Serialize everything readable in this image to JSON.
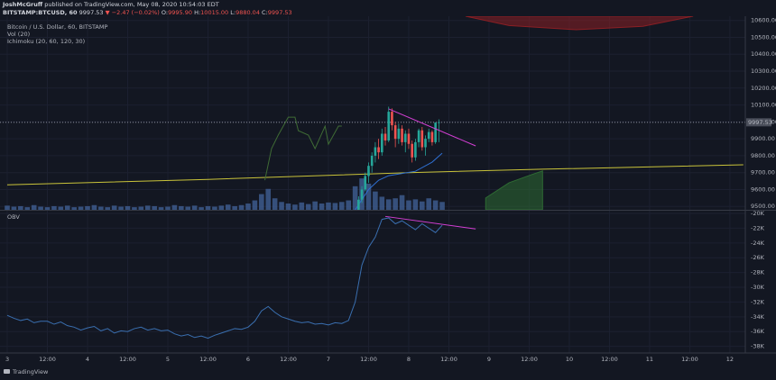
{
  "header": {
    "author": "JoshMcGruff",
    "published": "published on TradingView.com, May 08, 2020 10:54:03 EDT",
    "symbol": "BITSTAMP:BTCUSD, 60",
    "last": "9997.53",
    "change": "▼ −2.47 (−0.02%)",
    "ohlc": [
      {
        "label": "O:",
        "value": "9995.90"
      },
      {
        "label": "H:",
        "value": "10015.00"
      },
      {
        "label": "L:",
        "value": "9880.04"
      },
      {
        "label": "C:",
        "value": "9997.53"
      }
    ]
  },
  "footer": {
    "brand": "TradingView"
  },
  "chart_data": [
    {
      "type": "candlestick",
      "legend": [
        "Bitcoin / U.S. Dollar, 60, BITSTAMP",
        "Vol (20)",
        "Ichimoku (20, 60, 120, 30)"
      ],
      "xlim": [
        -2.16,
        220.6
      ],
      "ylim": [
        9480,
        10625
      ],
      "grid": true,
      "yticks": [
        {
          "value": 10600,
          "label": "10600.00"
        },
        {
          "value": 10500,
          "label": "10500.00"
        },
        {
          "value": 10400,
          "label": "10400.00"
        },
        {
          "value": 10300,
          "label": "10300.00"
        },
        {
          "value": 10200,
          "label": "10200.00"
        },
        {
          "value": 10100,
          "label": "10100.00"
        },
        {
          "value": 10000,
          "label": "10000.00"
        },
        {
          "value": 9900,
          "label": "9900.00"
        },
        {
          "value": 9800,
          "label": "9800.00"
        },
        {
          "value": 9700,
          "label": "9700.00"
        },
        {
          "value": 9600,
          "label": "9600.00"
        },
        {
          "value": 9500,
          "label": "9500.00"
        }
      ],
      "last_price": 9997.53,
      "candles": {
        "color_up": "#26a69a",
        "color_down": "#ef5350",
        "x": [
          105,
          106,
          107,
          108,
          109,
          110,
          111,
          112,
          113,
          114,
          115,
          116,
          117,
          118,
          119,
          120,
          121,
          122,
          123,
          124,
          125,
          126,
          127,
          128,
          129
        ],
        "open": [
          9480,
          9540,
          9600,
          9680,
          9740,
          9800,
          9850,
          9820,
          9930,
          9890,
          10060,
          9980,
          9900,
          9960,
          9880,
          9930,
          9870,
          9790,
          9880,
          9950,
          9850,
          9900,
          9940,
          9880,
          9995.9
        ],
        "high": [
          9560,
          9620,
          9700,
          9760,
          9820,
          9880,
          9900,
          9960,
          9970,
          10090,
          10080,
          10000,
          9990,
          9980,
          9950,
          9960,
          9890,
          9900,
          9960,
          9970,
          9920,
          9960,
          9950,
          9996,
          10015
        ],
        "low": [
          9470,
          9520,
          9590,
          9640,
          9700,
          9760,
          9780,
          9800,
          9860,
          9880,
          9950,
          9850,
          9870,
          9860,
          9820,
          9840,
          9760,
          9770,
          9850,
          9830,
          9800,
          9880,
          9860,
          9870,
          9880.04
        ],
        "close": [
          9540,
          9600,
          9680,
          9740,
          9800,
          9850,
          9820,
          9930,
          9890,
          10060,
          9980,
          9900,
          9960,
          9880,
          9930,
          9870,
          9790,
          9880,
          9950,
          9850,
          9900,
          9940,
          9880,
          9995.9,
          9997.53
        ]
      },
      "volume": {
        "color": "#3d5a8c",
        "ylim": [
          0,
          370
        ],
        "x": [
          0,
          2,
          4,
          6,
          8,
          10,
          12,
          14,
          16,
          18,
          20,
          22,
          24,
          26,
          28,
          30,
          32,
          34,
          36,
          38,
          40,
          42,
          44,
          46,
          48,
          50,
          52,
          54,
          56,
          58,
          60,
          62,
          64,
          66,
          68,
          70,
          72,
          74,
          76,
          78,
          80,
          82,
          84,
          86,
          88,
          90,
          92,
          94,
          96,
          98,
          100,
          102,
          104,
          106,
          108,
          110,
          112,
          114,
          116,
          118,
          120,
          122,
          124,
          126,
          128,
          130
        ],
        "values": [
          8,
          6,
          7,
          5,
          9,
          6,
          5,
          7,
          6,
          8,
          5,
          6,
          7,
          9,
          6,
          5,
          8,
          6,
          7,
          5,
          6,
          8,
          7,
          5,
          6,
          9,
          7,
          6,
          8,
          5,
          7,
          6,
          8,
          10,
          7,
          9,
          12,
          18,
          30,
          40,
          22,
          15,
          12,
          10,
          14,
          11,
          16,
          12,
          14,
          13,
          15,
          18,
          45,
          60,
          50,
          35,
          25,
          20,
          22,
          28,
          18,
          20,
          16,
          22,
          18,
          15
        ]
      },
      "lines": [
        {
          "color": "#c9c33a",
          "x": [
            0,
            60,
            120,
            160,
            220
          ],
          "values": [
            9628,
            9660,
            9700,
            9720,
            9746
          ]
        },
        {
          "color": "#3f6b35",
          "x": [
            77,
            79,
            81,
            84,
            86,
            87,
            90,
            92,
            95,
            96,
            99,
            100
          ],
          "values": [
            9655,
            9842,
            9922,
            10028,
            10028,
            9948,
            9922,
            9842,
            9975,
            9868,
            9975,
            9975
          ]
        },
        {
          "color": "#2f6fd1",
          "x": [
            104,
            108,
            111,
            114,
            122,
            127,
            130
          ],
          "values": [
            9480,
            9600,
            9655,
            9682,
            9708,
            9762,
            9815
          ]
        }
      ],
      "clouds": [
        {
          "color": "#2e6b33",
          "fill_to": "bottom",
          "x": [
            143,
            150,
            157,
            160
          ],
          "values": [
            9550,
            9640,
            9690,
            9710
          ]
        },
        {
          "color": "#8b1f24",
          "fill_to": "top",
          "x": [
            137,
            150,
            170,
            190,
            205
          ],
          "values": [
            10625,
            10570,
            10545,
            10565,
            10625
          ]
        }
      ],
      "trendlines": [
        {
          "color": "#d43fd4",
          "x": [
            114,
            140
          ],
          "values": [
            10077,
            9858
          ]
        }
      ]
    },
    {
      "type": "line",
      "title": "OBV",
      "xlim": [
        -2.16,
        220.6
      ],
      "ylim": [
        -38.9,
        -19.63
      ],
      "grid": true,
      "yticks": [
        {
          "value": -20,
          "label": "-20K"
        },
        {
          "value": -22,
          "label": "-22K"
        },
        {
          "value": -24,
          "label": "-24K"
        },
        {
          "value": -26,
          "label": "-26K"
        },
        {
          "value": -28,
          "label": "-28K"
        },
        {
          "value": -30,
          "label": "-30K"
        },
        {
          "value": -32,
          "label": "-32K"
        },
        {
          "value": -34,
          "label": "-34K"
        },
        {
          "value": -36,
          "label": "-36K"
        },
        {
          "value": -38,
          "label": "-38K"
        }
      ],
      "xticks": [
        {
          "value": 0,
          "label": "3"
        },
        {
          "value": 12,
          "label": "12:00"
        },
        {
          "value": 24,
          "label": "4"
        },
        {
          "value": 36,
          "label": "12:00"
        },
        {
          "value": 48,
          "label": "5"
        },
        {
          "value": 60,
          "label": "12:00"
        },
        {
          "value": 72,
          "label": "6"
        },
        {
          "value": 84,
          "label": "12:00"
        },
        {
          "value": 96,
          "label": "7"
        },
        {
          "value": 108,
          "label": "12:00"
        },
        {
          "value": 120,
          "label": "8"
        },
        {
          "value": 132,
          "label": "12:00"
        },
        {
          "value": 144,
          "label": "9"
        },
        {
          "value": 156,
          "label": "12:00"
        },
        {
          "value": 168,
          "label": "10"
        },
        {
          "value": 180,
          "label": "12:00"
        },
        {
          "value": 192,
          "label": "11"
        },
        {
          "value": 204,
          "label": "12:00"
        },
        {
          "value": 216,
          "label": "12"
        }
      ],
      "series": [
        {
          "color": "#3a6fb0",
          "x": [
            0,
            2,
            4,
            6,
            8,
            10,
            12,
            14,
            16,
            18,
            20,
            22,
            24,
            26,
            28,
            30,
            32,
            34,
            36,
            38,
            40,
            42,
            44,
            46,
            48,
            50,
            52,
            54,
            56,
            58,
            60,
            62,
            64,
            66,
            68,
            70,
            72,
            74,
            76,
            78,
            80,
            82,
            84,
            86,
            88,
            90,
            92,
            94,
            96,
            98,
            100,
            102,
            104,
            106,
            108,
            110,
            112,
            114,
            116,
            118,
            120,
            122,
            124,
            126,
            128,
            130
          ],
          "values": [
            -33.8,
            -34.2,
            -34.5,
            -34.3,
            -34.8,
            -34.6,
            -34.6,
            -35.0,
            -34.7,
            -35.2,
            -35.4,
            -35.8,
            -35.5,
            -35.3,
            -35.9,
            -35.6,
            -36.2,
            -35.9,
            -36.0,
            -35.6,
            -35.4,
            -35.8,
            -35.6,
            -35.9,
            -35.8,
            -36.3,
            -36.6,
            -36.4,
            -36.8,
            -36.6,
            -36.9,
            -36.5,
            -36.2,
            -35.9,
            -35.6,
            -35.7,
            -35.4,
            -34.6,
            -33.2,
            -32.6,
            -33.4,
            -34.0,
            -34.3,
            -34.6,
            -34.8,
            -34.7,
            -35.0,
            -34.9,
            -35.1,
            -34.8,
            -34.9,
            -34.5,
            -32.0,
            -27.0,
            -24.6,
            -23.2,
            -20.8,
            -20.6,
            -21.4,
            -21.0,
            -21.6,
            -22.2,
            -21.4,
            -22.0,
            -22.6,
            -21.6
          ]
        }
      ],
      "trendlines": [
        {
          "color": "#d43fd4",
          "x": [
            113,
            140
          ],
          "values": [
            -20.4,
            -22.1
          ]
        }
      ]
    }
  ]
}
